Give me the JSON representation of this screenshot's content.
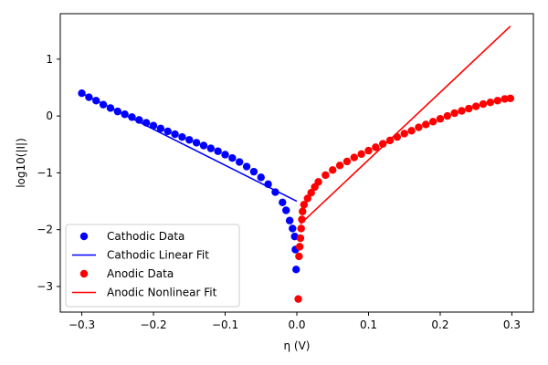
{
  "chart_data": {
    "type": "scatter",
    "title": "",
    "xlabel": "η (V)",
    "ylabel": "log10(|I|)",
    "xlim": [
      -0.33,
      0.33
    ],
    "ylim": [
      -3.45,
      1.8
    ],
    "grid": false,
    "legend_position": "lower-left",
    "x_ticks": [
      -0.3,
      -0.2,
      -0.1,
      0.0,
      0.1,
      0.2,
      0.3
    ],
    "x_tick_labels": [
      "−0.3",
      "−0.2",
      "−0.1",
      "0.0",
      "0.1",
      "0.2",
      "0.3"
    ],
    "y_ticks": [
      1,
      0,
      -1,
      -2,
      -3
    ],
    "y_tick_labels": [
      "1",
      "0",
      "−1",
      "−2",
      "−3"
    ],
    "colors": {
      "cathodic": "#0000ff",
      "anodic": "#ff0000"
    },
    "series": [
      {
        "name": "Cathodic Data",
        "kind": "scatter",
        "color": "#0000ff",
        "points": [
          [
            -0.3,
            0.4
          ],
          [
            -0.29,
            0.33
          ],
          [
            -0.28,
            0.27
          ],
          [
            -0.27,
            0.2
          ],
          [
            -0.26,
            0.14
          ],
          [
            -0.25,
            0.08
          ],
          [
            -0.24,
            0.03
          ],
          [
            -0.23,
            -0.02
          ],
          [
            -0.22,
            -0.07
          ],
          [
            -0.21,
            -0.12
          ],
          [
            -0.2,
            -0.17
          ],
          [
            -0.19,
            -0.22
          ],
          [
            -0.18,
            -0.27
          ],
          [
            -0.17,
            -0.32
          ],
          [
            -0.16,
            -0.37
          ],
          [
            -0.15,
            -0.42
          ],
          [
            -0.14,
            -0.47
          ],
          [
            -0.13,
            -0.52
          ],
          [
            -0.12,
            -0.57
          ],
          [
            -0.11,
            -0.62
          ],
          [
            -0.1,
            -0.68
          ],
          [
            -0.09,
            -0.74
          ],
          [
            -0.08,
            -0.81
          ],
          [
            -0.07,
            -0.89
          ],
          [
            -0.06,
            -0.98
          ],
          [
            -0.05,
            -1.08
          ],
          [
            -0.04,
            -1.2
          ],
          [
            -0.03,
            -1.34
          ],
          [
            -0.02,
            -1.52
          ],
          [
            -0.015,
            -1.66
          ],
          [
            -0.01,
            -1.84
          ],
          [
            -0.006,
            -1.98
          ],
          [
            -0.003,
            -2.12
          ],
          [
            -0.002,
            -2.35
          ],
          [
            -0.001,
            -2.7
          ]
        ]
      },
      {
        "name": "Cathodic Linear Fit",
        "kind": "line",
        "color": "#0000ff",
        "points": [
          [
            -0.3,
            0.4
          ],
          [
            0.0,
            -1.5
          ]
        ]
      },
      {
        "name": "Anodic Data",
        "kind": "scatter",
        "color": "#ff0000",
        "points": [
          [
            0.002,
            -3.22
          ],
          [
            0.003,
            -2.47
          ],
          [
            0.004,
            -2.3
          ],
          [
            0.005,
            -2.15
          ],
          [
            0.006,
            -1.98
          ],
          [
            0.007,
            -1.82
          ],
          [
            0.008,
            -1.68
          ],
          [
            0.01,
            -1.56
          ],
          [
            0.015,
            -1.45
          ],
          [
            0.02,
            -1.35
          ],
          [
            0.025,
            -1.25
          ],
          [
            0.03,
            -1.16
          ],
          [
            0.04,
            -1.04
          ],
          [
            0.05,
            -0.95
          ],
          [
            0.06,
            -0.87
          ],
          [
            0.07,
            -0.8
          ],
          [
            0.08,
            -0.73
          ],
          [
            0.09,
            -0.67
          ],
          [
            0.1,
            -0.61
          ],
          [
            0.11,
            -0.55
          ],
          [
            0.12,
            -0.49
          ],
          [
            0.13,
            -0.43
          ],
          [
            0.14,
            -0.37
          ],
          [
            0.15,
            -0.31
          ],
          [
            0.16,
            -0.26
          ],
          [
            0.17,
            -0.2
          ],
          [
            0.18,
            -0.15
          ],
          [
            0.19,
            -0.1
          ],
          [
            0.2,
            -0.05
          ],
          [
            0.21,
            0.0
          ],
          [
            0.22,
            0.05
          ],
          [
            0.23,
            0.09
          ],
          [
            0.24,
            0.13
          ],
          [
            0.25,
            0.17
          ],
          [
            0.26,
            0.21
          ],
          [
            0.27,
            0.24
          ],
          [
            0.28,
            0.27
          ],
          [
            0.29,
            0.3
          ],
          [
            0.298,
            0.31
          ]
        ]
      },
      {
        "name": "Anodic Nonlinear Fit",
        "kind": "line",
        "color": "#ff0000",
        "points": [
          [
            0.005,
            -1.9
          ],
          [
            0.298,
            1.58
          ]
        ]
      }
    ]
  }
}
